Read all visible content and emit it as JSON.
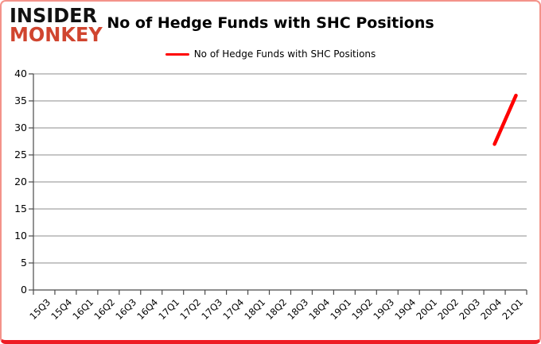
{
  "logo": {
    "line1": "INSIDER",
    "line2": "MONKEY",
    "monkey_color": "#d0452f"
  },
  "colors": {
    "series_red": "#ff0000",
    "border_bottom_red": "#ee1c24",
    "border_side_red": "#f4938a",
    "grid_gray": "#8e8e8e",
    "axis_gray": "#4a4a4a"
  },
  "chart_data": {
    "type": "line",
    "title": "No of Hedge Funds with SHC Positions",
    "legend_label": "No of Hedge Funds with SHC Positions",
    "legend_position": "top",
    "grid": true,
    "xlabel": "",
    "ylabel": "",
    "ylim": [
      0,
      40
    ],
    "ytick_step": 5,
    "grid_color": "#8e8e8e",
    "axis_color": "#4a4a4a",
    "categories": [
      "15Q3",
      "15Q4",
      "16Q1",
      "16Q2",
      "16Q3",
      "16Q4",
      "17Q1",
      "17Q2",
      "17Q3",
      "17Q4",
      "18Q1",
      "18Q2",
      "18Q3",
      "18Q4",
      "19Q1",
      "19Q2",
      "19Q3",
      "19Q4",
      "20Q1",
      "20Q2",
      "20Q3",
      "20Q4",
      "21Q1"
    ],
    "series": [
      {
        "name": "No of Hedge Funds with SHC Positions",
        "color": "#ff0000",
        "values": [
          null,
          null,
          null,
          null,
          null,
          null,
          null,
          null,
          null,
          null,
          null,
          null,
          null,
          null,
          null,
          null,
          null,
          null,
          null,
          null,
          null,
          27,
          36
        ]
      }
    ]
  }
}
